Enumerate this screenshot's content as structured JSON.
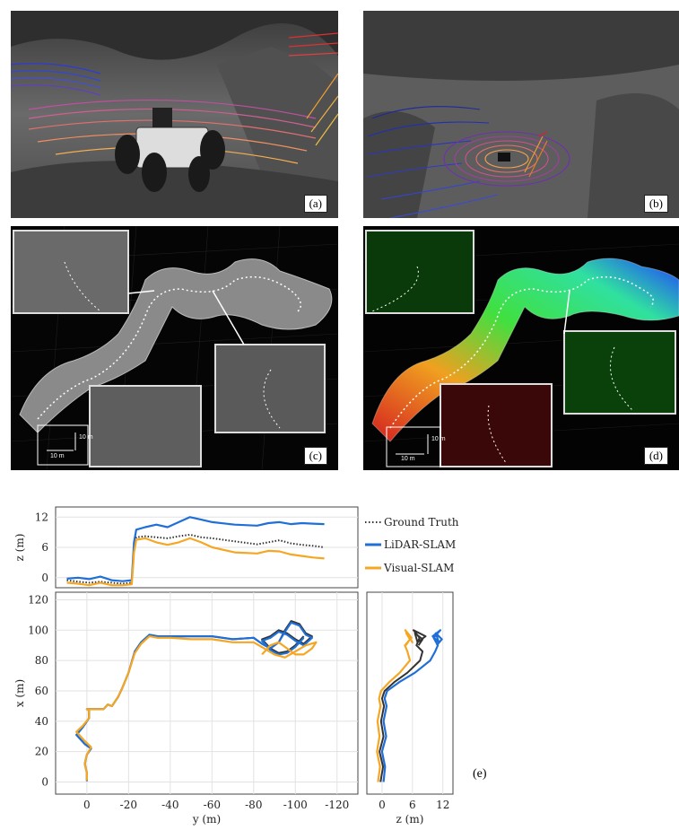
{
  "panels": {
    "a": {
      "label": "(a)"
    },
    "b": {
      "label": "(b)"
    },
    "c": {
      "label": "(c)",
      "scale_x": "10 m",
      "scale_y": "10 m"
    },
    "d": {
      "label": "(d)",
      "scale_x": "10 m",
      "scale_y": "10 m"
    },
    "e": {
      "label": "(e)"
    }
  },
  "colors": {
    "ground_truth": "#333333",
    "lidar": "#1f6fd6",
    "visual": "#f5a623"
  },
  "chart_data": [
    {
      "id": "top",
      "type": "line",
      "xlabel": "",
      "ylabel": "z (m)",
      "xlim": [
        10,
        -125
      ],
      "ylim": [
        -2,
        14
      ],
      "yticks": [
        0,
        6,
        12
      ],
      "grid": true,
      "legend": "right",
      "series": [
        {
          "name": "Ground Truth",
          "style": "dotted",
          "x": [
            5,
            0,
            -5,
            -10,
            -15,
            -20,
            -24,
            -25,
            -26,
            -30,
            -35,
            -40,
            -45,
            -50,
            -55,
            -60,
            -70,
            -80,
            -85,
            -90,
            -95,
            -100,
            -105,
            -110
          ],
          "y": [
            -0.5,
            -0.8,
            -1.0,
            -0.8,
            -1.0,
            -1.2,
            -1.0,
            6,
            8,
            8.2,
            8.0,
            7.8,
            8.2,
            8.5,
            8.0,
            7.8,
            7.2,
            6.6,
            7.0,
            7.4,
            6.8,
            6.5,
            6.3,
            6.0
          ]
        },
        {
          "name": "LiDAR-SLAM",
          "x": [
            5,
            0,
            -5,
            -10,
            -15,
            -20,
            -24,
            -25,
            -26,
            -30,
            -35,
            -40,
            -45,
            -50,
            -55,
            -60,
            -70,
            -80,
            -85,
            -90,
            -95,
            -100,
            -105,
            -110
          ],
          "y": [
            -0.2,
            0.0,
            -0.3,
            0.2,
            -0.5,
            -0.7,
            -0.5,
            7,
            9.5,
            10.0,
            10.5,
            10.0,
            11.0,
            12.0,
            11.5,
            11.0,
            10.5,
            10.3,
            10.8,
            11.0,
            10.6,
            10.8,
            10.7,
            10.6
          ]
        },
        {
          "name": "Visual-SLAM",
          "x": [
            5,
            0,
            -5,
            -10,
            -15,
            -20,
            -24,
            -25,
            -26,
            -30,
            -35,
            -40,
            -45,
            -50,
            -55,
            -60,
            -70,
            -80,
            -85,
            -90,
            -95,
            -100,
            -105,
            -110
          ],
          "y": [
            -1.0,
            -1.2,
            -1.5,
            -1.0,
            -1.5,
            -1.5,
            -1.3,
            5,
            7.5,
            7.8,
            7.0,
            6.5,
            7.0,
            7.8,
            7.0,
            6.0,
            5.0,
            4.8,
            5.3,
            5.2,
            4.6,
            4.3,
            4.0,
            3.8
          ]
        }
      ]
    },
    {
      "id": "main",
      "type": "line",
      "xlabel": "y (m)",
      "ylabel": "x (m)",
      "xlim": [
        15,
        -130
      ],
      "ylim": [
        -8,
        125
      ],
      "xticks": [
        0,
        -20,
        -40,
        -60,
        -80,
        -100,
        -120
      ],
      "yticks": [
        0,
        20,
        40,
        60,
        80,
        100,
        120
      ],
      "grid": true,
      "series": [
        {
          "name": "Ground Truth",
          "x": [
            0,
            0,
            1,
            0,
            -2,
            1,
            3,
            5,
            2,
            -1,
            -1,
            0,
            -4,
            -8,
            -10,
            -12,
            -15,
            -17,
            -20,
            -23,
            -26,
            -30,
            -34,
            -40,
            -50,
            -60,
            -70,
            -80,
            -84,
            -88,
            -92,
            -95,
            -98,
            -102,
            -105,
            -108,
            -104,
            -100,
            -96,
            -92,
            -88,
            -84,
            -88,
            -92,
            -96,
            -100,
            -104
          ],
          "y": [
            1,
            6,
            12,
            18,
            22,
            25,
            28,
            31,
            36,
            42,
            47,
            48,
            48,
            48,
            51,
            50,
            56,
            62,
            72,
            86,
            92,
            97,
            96,
            96,
            96,
            96,
            94,
            95,
            91,
            88,
            92,
            100,
            106,
            104,
            98,
            96,
            91,
            94,
            98,
            100,
            96,
            94,
            88,
            85,
            86,
            90,
            96
          ]
        },
        {
          "name": "LiDAR-SLAM",
          "x": [
            0,
            0,
            1,
            0,
            -2,
            1,
            3,
            5,
            2,
            -1,
            -1,
            0,
            -4,
            -8,
            -10,
            -12,
            -15,
            -17,
            -20,
            -23,
            -26,
            -30,
            -34,
            -40,
            -50,
            -60,
            -70,
            -80,
            -84,
            -88,
            -92,
            -95,
            -98,
            -102,
            -105,
            -108,
            -104,
            -100,
            -96,
            -92,
            -88,
            -84,
            -88,
            -92,
            -96,
            -100,
            -104
          ],
          "y": [
            0.5,
            6,
            12,
            18,
            22,
            25,
            28,
            31,
            36,
            42,
            47,
            48,
            48,
            48,
            51,
            50,
            56,
            62,
            72,
            86,
            92,
            97,
            96,
            96,
            96,
            96,
            94,
            95,
            91,
            88,
            92,
            99,
            105,
            103,
            97,
            95,
            90,
            93,
            97,
            99,
            95,
            93,
            87,
            84,
            85,
            89,
            95
          ]
        },
        {
          "name": "Visual-SLAM",
          "x": [
            0,
            0,
            1,
            0,
            -2,
            1,
            3,
            5,
            2,
            -1,
            -1,
            0,
            -4,
            -8,
            -10,
            -12,
            -15,
            -17,
            -20,
            -23,
            -26,
            -30,
            -34,
            -40,
            -50,
            -60,
            -70,
            -80,
            -85,
            -90,
            -95,
            -100,
            -105,
            -110,
            -108,
            -104,
            -100,
            -96,
            -92,
            -88,
            -84
          ],
          "y": [
            1,
            6,
            12,
            18,
            23,
            27,
            30,
            33,
            37,
            42,
            47,
            48,
            48,
            48,
            51,
            50,
            56,
            62,
            72,
            85,
            91,
            96,
            95,
            95,
            94,
            94,
            92,
            92,
            88,
            84,
            82,
            86,
            90,
            92,
            88,
            84,
            84,
            88,
            92,
            90,
            84
          ]
        }
      ]
    },
    {
      "id": "side",
      "type": "line",
      "xlabel": "z (m)",
      "ylabel": "",
      "xlim": [
        -3,
        14
      ],
      "ylim": [
        -8,
        125
      ],
      "xticks": [
        0,
        6,
        12
      ],
      "grid": true,
      "series": [
        {
          "name": "Ground Truth",
          "x": [
            -0.3,
            0.2,
            -0.5,
            0.3,
            -0.2,
            0.4,
            0.0,
            0.5,
            2.5,
            5.0,
            7.5,
            8.0,
            6.8,
            7.4,
            6.2,
            8.6,
            7.0,
            6.5,
            8.0,
            7.2
          ],
          "y": [
            0,
            10,
            20,
            30,
            40,
            50,
            55,
            60,
            66,
            72,
            80,
            86,
            90,
            95,
            100,
            96,
            92,
            98,
            94,
            90
          ]
        },
        {
          "name": "LiDAR-SLAM",
          "x": [
            0.3,
            0.6,
            0.0,
            0.8,
            0.3,
            0.9,
            0.5,
            1.0,
            3.5,
            6.5,
            9.5,
            10.5,
            11.0,
            10.2,
            11.5,
            10.0,
            11.2,
            10.6,
            11.8,
            10.8
          ],
          "y": [
            0,
            10,
            20,
            30,
            40,
            50,
            55,
            60,
            66,
            72,
            80,
            86,
            90,
            95,
            100,
            96,
            92,
            98,
            94,
            90
          ]
        },
        {
          "name": "Visual-SLAM",
          "x": [
            -0.8,
            -0.4,
            -1.0,
            -0.5,
            -0.9,
            -0.3,
            -0.6,
            -0.2,
            1.5,
            3.5,
            5.5,
            5.0,
            4.5,
            5.8,
            4.6,
            5.2,
            6.0,
            4.8,
            5.5,
            4.7
          ],
          "y": [
            0,
            10,
            20,
            30,
            40,
            50,
            55,
            60,
            66,
            72,
            80,
            86,
            90,
            95,
            100,
            96,
            92,
            98,
            94,
            90
          ]
        }
      ]
    }
  ]
}
